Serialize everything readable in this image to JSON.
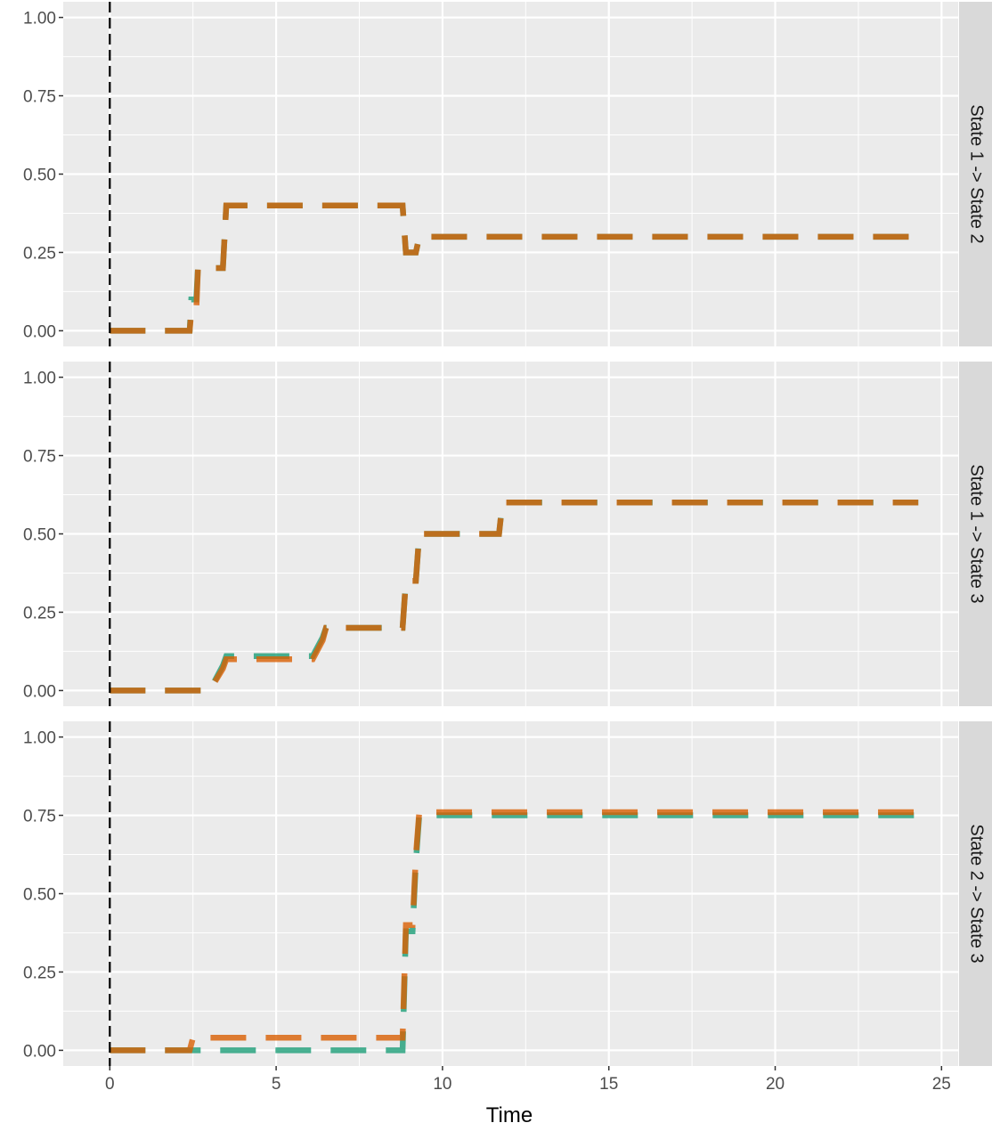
{
  "chart_data": {
    "type": "line",
    "xlabel": "Time",
    "xlim": [
      -1.4,
      25.5
    ],
    "ylim": [
      -0.05,
      1.05
    ],
    "x_ticks": [
      "0",
      "5",
      "10",
      "15",
      "20",
      "25"
    ],
    "y_ticks": [
      "0.00",
      "0.25",
      "0.50",
      "0.75",
      "1.00"
    ],
    "reference_line": {
      "x": 0,
      "style": "dashed",
      "color": "#000000"
    },
    "grid": true,
    "legend": "none",
    "colors": {
      "series_a": "#1b9e77",
      "series_b": "#d95f02",
      "panel_bg": "#ebebeb",
      "strip_bg": "#d9d9d9"
    },
    "panels": [
      {
        "label": "State 1 -> State 2",
        "series": [
          {
            "color": "#1b9e77",
            "x": [
              0,
              2.4,
              2.45,
              2.6,
              2.65,
              3.4,
              3.5,
              8.8,
              8.9,
              9.2,
              9.3,
              24.3
            ],
            "y": [
              0,
              0,
              0.1,
              0.1,
              0.2,
              0.2,
              0.4,
              0.4,
              0.25,
              0.25,
              0.3,
              0.3
            ]
          },
          {
            "color": "#d95f02",
            "x": [
              0,
              2.4,
              2.45,
              2.6,
              2.65,
              3.4,
              3.5,
              8.8,
              8.9,
              9.2,
              9.3,
              24.3
            ],
            "y": [
              0,
              0,
              0.06,
              0.06,
              0.2,
              0.2,
              0.4,
              0.4,
              0.25,
              0.25,
              0.3,
              0.3
            ]
          }
        ]
      },
      {
        "label": "State 1 -> State 3",
        "series": [
          {
            "color": "#1b9e77",
            "x": [
              0,
              3.0,
              3.4,
              3.5,
              6.1,
              6.4,
              6.5,
              8.8,
              8.9,
              9.2,
              9.3,
              11.7,
              11.8,
              24.3
            ],
            "y": [
              0,
              0,
              0.08,
              0.11,
              0.11,
              0.17,
              0.2,
              0.2,
              0.35,
              0.35,
              0.5,
              0.5,
              0.6,
              0.6
            ]
          },
          {
            "color": "#d95f02",
            "x": [
              0,
              3.0,
              3.4,
              3.5,
              6.1,
              6.4,
              6.5,
              8.8,
              8.9,
              9.2,
              9.3,
              11.7,
              11.8,
              24.3
            ],
            "y": [
              0,
              0,
              0.07,
              0.1,
              0.1,
              0.16,
              0.2,
              0.2,
              0.35,
              0.35,
              0.5,
              0.5,
              0.6,
              0.6
            ]
          }
        ]
      },
      {
        "label": "State 2 -> State 3",
        "series": [
          {
            "color": "#1b9e77",
            "x": [
              0,
              8.8,
              8.9,
              9.1,
              9.2,
              9.3,
              24.3
            ],
            "y": [
              0,
              0,
              0.38,
              0.38,
              0.6,
              0.75,
              0.75
            ]
          },
          {
            "color": "#d95f02",
            "x": [
              0,
              2.4,
              2.5,
              8.8,
              8.9,
              9.1,
              9.2,
              9.3,
              24.3
            ],
            "y": [
              0,
              0,
              0.04,
              0.04,
              0.4,
              0.4,
              0.62,
              0.76,
              0.76
            ]
          }
        ]
      }
    ]
  }
}
